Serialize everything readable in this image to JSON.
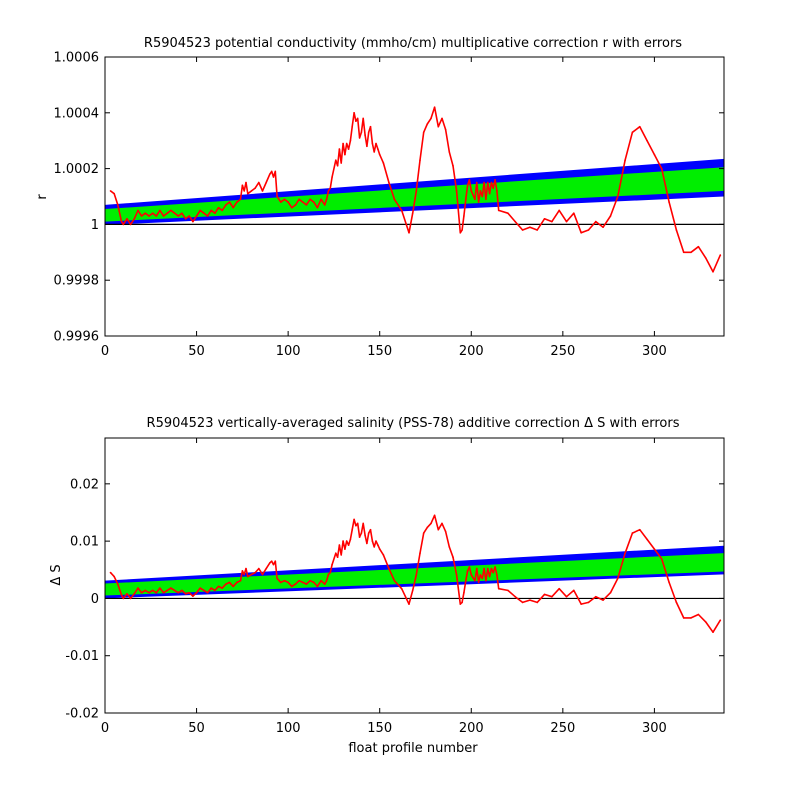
{
  "chart_data": [
    {
      "type": "line",
      "title": "R5904523 potential conductivity (mmho/cm) multiplicative correction r with errors",
      "xlabel": "",
      "ylabel": "r",
      "xlim": [
        0,
        338
      ],
      "ylim": [
        0.9996,
        1.0006
      ],
      "x_ticks": [
        0,
        50,
        100,
        150,
        200,
        250,
        300
      ],
      "x_tick_labels": [
        "0",
        "50",
        "100",
        "150",
        "200",
        "250",
        "300"
      ],
      "y_ticks": [
        0.9996,
        0.9998,
        1,
        1.0002,
        1.0004,
        1.0006
      ],
      "y_tick_labels": [
        "0.9996",
        "0.9998",
        "1",
        "1.0002",
        "1.0004",
        "1.0006"
      ],
      "grid": false,
      "colors": {
        "correction": "#ff0000",
        "inner_error": "#00ee00",
        "outer_error": "#0000ff",
        "reference": "#000000"
      },
      "reference_line": {
        "y": 1
      },
      "error_bands": {
        "x": [
          0,
          338
        ],
        "outer_upper": [
          1.00007,
          1.000235
        ],
        "inner_upper": [
          1.000055,
          1.000205
        ],
        "inner_lower": [
          1.00001,
          1.00012
        ],
        "outer_lower": [
          0.999998,
          1.0001
        ]
      },
      "series": [
        {
          "x": [
            3,
            5,
            7,
            9,
            10,
            12,
            14,
            16,
            18,
            20,
            22,
            24,
            26,
            28,
            30,
            32,
            34,
            36,
            38,
            40,
            42,
            44,
            46,
            48,
            50,
            52,
            54,
            56,
            58,
            60,
            62,
            64,
            66,
            68,
            70,
            72,
            74,
            75,
            76,
            77,
            78,
            80,
            82,
            84,
            86,
            88,
            90,
            91,
            92,
            93,
            94,
            96,
            98,
            100,
            102,
            104,
            106,
            108,
            110,
            112,
            114,
            116,
            118,
            120,
            121,
            122,
            123,
            124,
            126,
            127,
            128,
            129,
            130,
            131,
            132,
            133,
            134,
            135,
            136,
            137,
            138,
            139,
            140,
            141,
            142,
            143,
            144,
            145,
            146,
            147,
            148,
            149,
            150,
            152,
            155,
            158,
            162,
            166,
            168,
            170,
            172,
            174,
            176,
            178,
            180,
            182,
            184,
            186,
            188,
            190,
            192,
            194,
            195,
            196,
            197,
            198,
            199,
            200,
            202,
            203,
            204,
            205,
            206,
            207,
            208,
            209,
            210,
            211,
            212,
            213,
            214,
            215,
            220,
            224,
            228,
            232,
            236,
            240,
            244,
            248,
            252,
            256,
            260,
            264,
            268,
            272,
            276,
            280,
            284,
            288,
            292,
            296,
            300,
            304,
            308,
            312,
            316,
            320,
            324,
            328,
            332,
            336
          ],
          "y": [
            1.00012,
            1.00011,
            1.00007,
            1.00001,
            1.0,
            1.00002,
            1.0,
            1.00002,
            1.00005,
            1.00003,
            1.00004,
            1.00003,
            1.00004,
            1.00003,
            1.00005,
            1.00003,
            1.00004,
            1.00005,
            1.00004,
            1.00003,
            1.00004,
            1.00002,
            1.00003,
            1.00001,
            1.00003,
            1.00005,
            1.00004,
            1.00003,
            1.00005,
            1.00004,
            1.00006,
            1.00005,
            1.00007,
            1.00008,
            1.00006,
            1.00008,
            1.00009,
            1.00014,
            1.00012,
            1.00015,
            1.00011,
            1.00012,
            1.00013,
            1.00015,
            1.00012,
            1.00015,
            1.00018,
            1.00019,
            1.00017,
            1.00019,
            1.0001,
            1.00008,
            1.00009,
            1.00008,
            1.00006,
            1.00007,
            1.00009,
            1.00008,
            1.00007,
            1.00009,
            1.00008,
            1.00006,
            1.00009,
            1.00007,
            1.00009,
            1.00012,
            1.00013,
            1.00017,
            1.00023,
            1.00021,
            1.00027,
            1.00022,
            1.00029,
            1.00025,
            1.00029,
            1.00027,
            1.0003,
            1.00035,
            1.0004,
            1.00037,
            1.00038,
            1.00031,
            1.00033,
            1.00038,
            1.00032,
            1.00028,
            1.00033,
            1.00035,
            1.00029,
            1.00026,
            1.00029,
            1.00027,
            1.00025,
            1.00022,
            1.00015,
            1.00009,
            1.00005,
            0.99997,
            1.00004,
            1.00012,
            1.00023,
            1.00033,
            1.00036,
            1.00038,
            1.00042,
            1.00035,
            1.00038,
            1.00034,
            1.00026,
            1.00021,
            1.00012,
            0.99997,
            0.99998,
            1.00003,
            1.00009,
            1.00014,
            1.00016,
            1.00012,
            1.00009,
            1.00015,
            1.00008,
            1.00012,
            1.0001,
            1.00015,
            1.00009,
            1.00015,
            1.00011,
            1.00015,
            1.00013,
            1.00016,
            1.00012,
            1.00005,
            1.00004,
            1.00001,
            0.99998,
            0.99999,
            0.99998,
            1.00002,
            1.00001,
            1.00005,
            1.00001,
            1.00004,
            0.99997,
            0.99998,
            1.00001,
            0.99999,
            1.00003,
            1.0001,
            1.00023,
            1.00033,
            1.00035,
            1.0003,
            1.00025,
            1.0002,
            1.00008,
            0.99998,
            0.9999,
            0.9999,
            0.99992,
            0.99988,
            0.99983,
            0.99989
          ]
        }
      ]
    },
    {
      "type": "line",
      "title": "R5904523 vertically-averaged salinity (PSS-78) additive correction Δ S with errors",
      "xlabel": "float profile number",
      "ylabel": "Δ S",
      "xlim": [
        0,
        338
      ],
      "ylim": [
        -0.02,
        0.028
      ],
      "x_ticks": [
        0,
        50,
        100,
        150,
        200,
        250,
        300
      ],
      "x_tick_labels": [
        "0",
        "50",
        "100",
        "150",
        "200",
        "250",
        "300"
      ],
      "y_ticks": [
        -0.02,
        -0.01,
        0,
        0.01,
        0.02
      ],
      "y_tick_labels": [
        "-0.02",
        "-0.01",
        "0",
        "0.01",
        "0.02"
      ],
      "grid": false,
      "colors": {
        "correction": "#ff0000",
        "inner_error": "#00ee00",
        "outer_error": "#0000ff",
        "reference": "#000000"
      },
      "reference_line": {
        "y": 0
      },
      "error_bands": {
        "x": [
          0,
          338
        ],
        "outer_upper": [
          0.0031,
          0.0092
        ],
        "inner_upper": [
          0.0026,
          0.0079
        ],
        "inner_lower": [
          0.0005,
          0.0047
        ],
        "outer_lower": [
          0.0,
          0.0042
        ]
      },
      "series": [
        {
          "x": [
            3,
            5,
            7,
            9,
            10,
            12,
            14,
            16,
            18,
            20,
            22,
            24,
            26,
            28,
            30,
            32,
            34,
            36,
            38,
            40,
            42,
            44,
            46,
            48,
            50,
            52,
            54,
            56,
            58,
            60,
            62,
            64,
            66,
            68,
            70,
            72,
            74,
            75,
            76,
            77,
            78,
            80,
            82,
            84,
            86,
            88,
            90,
            91,
            92,
            93,
            94,
            96,
            98,
            100,
            102,
            104,
            106,
            108,
            110,
            112,
            114,
            116,
            118,
            120,
            121,
            122,
            123,
            124,
            126,
            127,
            128,
            129,
            130,
            131,
            132,
            133,
            134,
            135,
            136,
            137,
            138,
            139,
            140,
            141,
            142,
            143,
            144,
            145,
            146,
            147,
            148,
            149,
            150,
            152,
            155,
            158,
            162,
            166,
            168,
            170,
            172,
            174,
            176,
            178,
            180,
            182,
            184,
            186,
            188,
            190,
            192,
            194,
            195,
            196,
            197,
            198,
            199,
            200,
            202,
            203,
            204,
            205,
            206,
            207,
            208,
            209,
            210,
            211,
            212,
            213,
            214,
            215,
            220,
            224,
            228,
            232,
            236,
            240,
            244,
            248,
            252,
            256,
            260,
            264,
            268,
            272,
            276,
            280,
            284,
            288,
            292,
            296,
            300,
            304,
            308,
            312,
            316,
            320,
            324,
            328,
            332,
            336
          ],
          "y": [
            0.0045,
            0.0038,
            0.0025,
            0.0006,
            0.0,
            0.0008,
            0.0,
            0.0008,
            0.0018,
            0.001,
            0.0014,
            0.001,
            0.0014,
            0.001,
            0.0018,
            0.001,
            0.0014,
            0.0018,
            0.0014,
            0.001,
            0.0014,
            0.0008,
            0.001,
            0.0004,
            0.001,
            0.0018,
            0.0014,
            0.001,
            0.0018,
            0.0014,
            0.0021,
            0.0018,
            0.0025,
            0.0028,
            0.0021,
            0.0028,
            0.0031,
            0.0048,
            0.0042,
            0.0052,
            0.0038,
            0.0042,
            0.0045,
            0.0052,
            0.0042,
            0.0052,
            0.0062,
            0.0065,
            0.0059,
            0.0065,
            0.0035,
            0.0028,
            0.0031,
            0.0028,
            0.0021,
            0.0025,
            0.0031,
            0.0028,
            0.0025,
            0.0031,
            0.0028,
            0.0021,
            0.0031,
            0.0025,
            0.0031,
            0.0042,
            0.0045,
            0.0059,
            0.0079,
            0.0072,
            0.0093,
            0.0076,
            0.01,
            0.0086,
            0.01,
            0.0093,
            0.0103,
            0.012,
            0.0138,
            0.0127,
            0.0131,
            0.0107,
            0.0114,
            0.0131,
            0.011,
            0.0096,
            0.0114,
            0.012,
            0.01,
            0.009,
            0.01,
            0.0093,
            0.0086,
            0.0076,
            0.0052,
            0.0031,
            0.0017,
            -0.001,
            0.0014,
            0.0041,
            0.0079,
            0.0114,
            0.0124,
            0.0131,
            0.0145,
            0.012,
            0.0131,
            0.0117,
            0.009,
            0.0072,
            0.0041,
            -0.001,
            -0.0007,
            0.001,
            0.0031,
            0.0048,
            0.0055,
            0.0041,
            0.0031,
            0.0052,
            0.0028,
            0.0041,
            0.0035,
            0.0052,
            0.0031,
            0.0052,
            0.0038,
            0.0052,
            0.0045,
            0.0055,
            0.0041,
            0.0017,
            0.0014,
            0.0003,
            -0.0007,
            -0.0003,
            -0.0007,
            0.0007,
            0.0003,
            0.0017,
            0.0003,
            0.0014,
            -0.001,
            -0.0007,
            0.0003,
            -0.0003,
            0.001,
            0.0035,
            0.0079,
            0.0114,
            0.012,
            0.0103,
            0.0086,
            0.0069,
            0.0028,
            -0.0007,
            -0.0034,
            -0.0034,
            -0.0028,
            -0.0041,
            -0.0059,
            -0.0038
          ]
        }
      ]
    }
  ]
}
